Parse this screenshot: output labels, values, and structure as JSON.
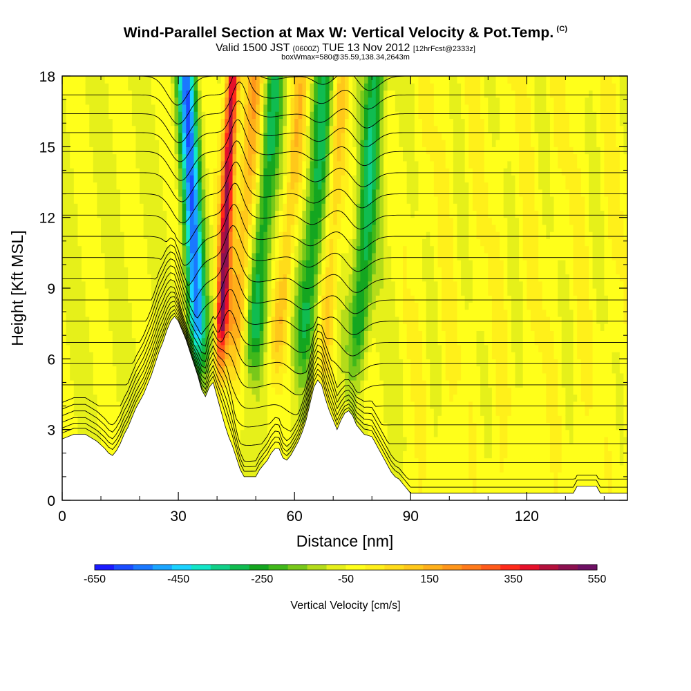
{
  "header": {
    "title": "Wind-Parallel Section at Max W: Vertical Velocity & Pot.Temp.",
    "copyright": "(C)",
    "valid_a": "Valid 1500 JST",
    "valid_b": "(0600Z)",
    "valid_c": "TUE 13 Nov 2012",
    "valid_d": "[12hrFcst@2333z]",
    "box_info": "boxWmax=580@35.59,138.34,2643m"
  },
  "chart_data": {
    "type": "heatmap",
    "title": "Wind-Parallel Section at Max W: Vertical Velocity & Pot.Temp.",
    "xlabel": "Distance [nm]",
    "ylabel": "Height [Kft MSL]",
    "xlim": [
      0,
      146
    ],
    "ylim": [
      0,
      18
    ],
    "x_ticks": [
      0,
      30,
      60,
      90,
      120
    ],
    "y_ticks": [
      0,
      3,
      6,
      9,
      12,
      15,
      18
    ],
    "colorbar": {
      "label": "Vertical Velocity [cm/s]",
      "min": -650,
      "max": 550,
      "step": 50,
      "tick_labels": [
        "-650",
        "-450",
        "-250",
        "-50",
        "150",
        "350",
        "550"
      ],
      "colors": [
        "#1a1aff",
        "#1a4cff",
        "#1a78ff",
        "#1aa5ff",
        "#1ad2ff",
        "#12e6c8",
        "#10d088",
        "#10bc50",
        "#14a620",
        "#40b81a",
        "#78c81a",
        "#b4dc1a",
        "#e6f01a",
        "#ffff1a",
        "#fff01a",
        "#ffdc1a",
        "#ffc81a",
        "#ffb01a",
        "#ff961a",
        "#ff7a1a",
        "#ff5a1a",
        "#ff2a1a",
        "#e6102a",
        "#b4103c",
        "#8c1050",
        "#6e1064"
      ]
    },
    "terrain_kft": [
      [
        0,
        2.6
      ],
      [
        3,
        2.8
      ],
      [
        6,
        2.8
      ],
      [
        9,
        2.5
      ],
      [
        11,
        2.2
      ],
      [
        12,
        2.0
      ],
      [
        13,
        1.9
      ],
      [
        14,
        2.1
      ],
      [
        15,
        2.4
      ],
      [
        16,
        2.8
      ],
      [
        17,
        3.1
      ],
      [
        18,
        3.5
      ],
      [
        19,
        3.9
      ],
      [
        20,
        4.2
      ],
      [
        21,
        4.5
      ],
      [
        22,
        4.9
      ],
      [
        23,
        5.3
      ],
      [
        24,
        5.8
      ],
      [
        25,
        6.3
      ],
      [
        26,
        6.7
      ],
      [
        27,
        7.2
      ],
      [
        28,
        7.6
      ],
      [
        29,
        7.8
      ],
      [
        30,
        7.6
      ],
      [
        31,
        7.2
      ],
      [
        32,
        6.8
      ],
      [
        33,
        6.3
      ],
      [
        34,
        5.8
      ],
      [
        35,
        5.3
      ],
      [
        36,
        4.7
      ],
      [
        37,
        4.4
      ],
      [
        38,
        4.8
      ],
      [
        39,
        5.0
      ],
      [
        40,
        4.4
      ],
      [
        41,
        3.8
      ],
      [
        42,
        3.2
      ],
      [
        43,
        2.7
      ],
      [
        44,
        2.3
      ],
      [
        45,
        1.8
      ],
      [
        46,
        1.3
      ],
      [
        47,
        1.0
      ],
      [
        50,
        1.0
      ],
      [
        51,
        1.3
      ],
      [
        52,
        1.5
      ],
      [
        53,
        1.7
      ],
      [
        54,
        2.0
      ],
      [
        55,
        2.2
      ],
      [
        56,
        2.2
      ],
      [
        57,
        1.8
      ],
      [
        58,
        1.7
      ],
      [
        59,
        1.9
      ],
      [
        60,
        2.2
      ],
      [
        61,
        2.5
      ],
      [
        62,
        2.9
      ],
      [
        63,
        3.4
      ],
      [
        64,
        4.1
      ],
      [
        65,
        4.8
      ],
      [
        66,
        5.1
      ],
      [
        67,
        4.9
      ],
      [
        68,
        4.3
      ],
      [
        69,
        3.8
      ],
      [
        70,
        3.4
      ],
      [
        71,
        3.0
      ],
      [
        72,
        3.4
      ],
      [
        73,
        3.7
      ],
      [
        74,
        3.8
      ],
      [
        75,
        3.6
      ],
      [
        76,
        3.2
      ],
      [
        77,
        3.0
      ],
      [
        78,
        2.8
      ],
      [
        80,
        2.7
      ],
      [
        81,
        2.4
      ],
      [
        82,
        2.1
      ],
      [
        83,
        1.8
      ],
      [
        84,
        1.5
      ],
      [
        85,
        1.2
      ],
      [
        86,
        1.0
      ],
      [
        87,
        0.9
      ],
      [
        88,
        0.7
      ],
      [
        89,
        0.5
      ],
      [
        90,
        0.3
      ],
      [
        93,
        0.3
      ],
      [
        132,
        0.3
      ],
      [
        133,
        0.6
      ],
      [
        138,
        0.6
      ],
      [
        139,
        0.3
      ],
      [
        146,
        0.3
      ]
    ],
    "updrafts": [
      {
        "x_bottom": 40,
        "x_top": 44,
        "sign": 1,
        "strength": 560,
        "width": 1.6
      },
      {
        "x_bottom": 36,
        "x_top": 32,
        "sign": -1,
        "strength": 520,
        "width": 2.4
      },
      {
        "x_bottom": 43,
        "x_top": 50,
        "sign": 1,
        "strength": 220,
        "width": 2.6
      },
      {
        "x_bottom": 48,
        "x_top": 55,
        "sign": -1,
        "strength": 260,
        "width": 2.6
      },
      {
        "x_bottom": 54,
        "x_top": 62,
        "sign": 1,
        "strength": 170,
        "width": 2.2
      },
      {
        "x_bottom": 61,
        "x_top": 68,
        "sign": -1,
        "strength": 260,
        "width": 2.8
      },
      {
        "x_bottom": 67,
        "x_top": 72,
        "sign": 1,
        "strength": 160,
        "width": 2.2
      },
      {
        "x_bottom": 75,
        "x_top": 81,
        "sign": -1,
        "strength": 280,
        "width": 2.6
      }
    ],
    "isentrope_levels_kft": [
      0.3,
      0.9,
      1.6,
      2.4,
      3.2,
      4.0,
      4.9,
      5.8,
      6.7,
      7.6,
      8.5,
      9.4,
      10.3,
      11.2,
      12.1,
      13.0,
      13.9,
      14.8,
      15.6,
      16.4,
      17.2,
      18.0
    ]
  }
}
